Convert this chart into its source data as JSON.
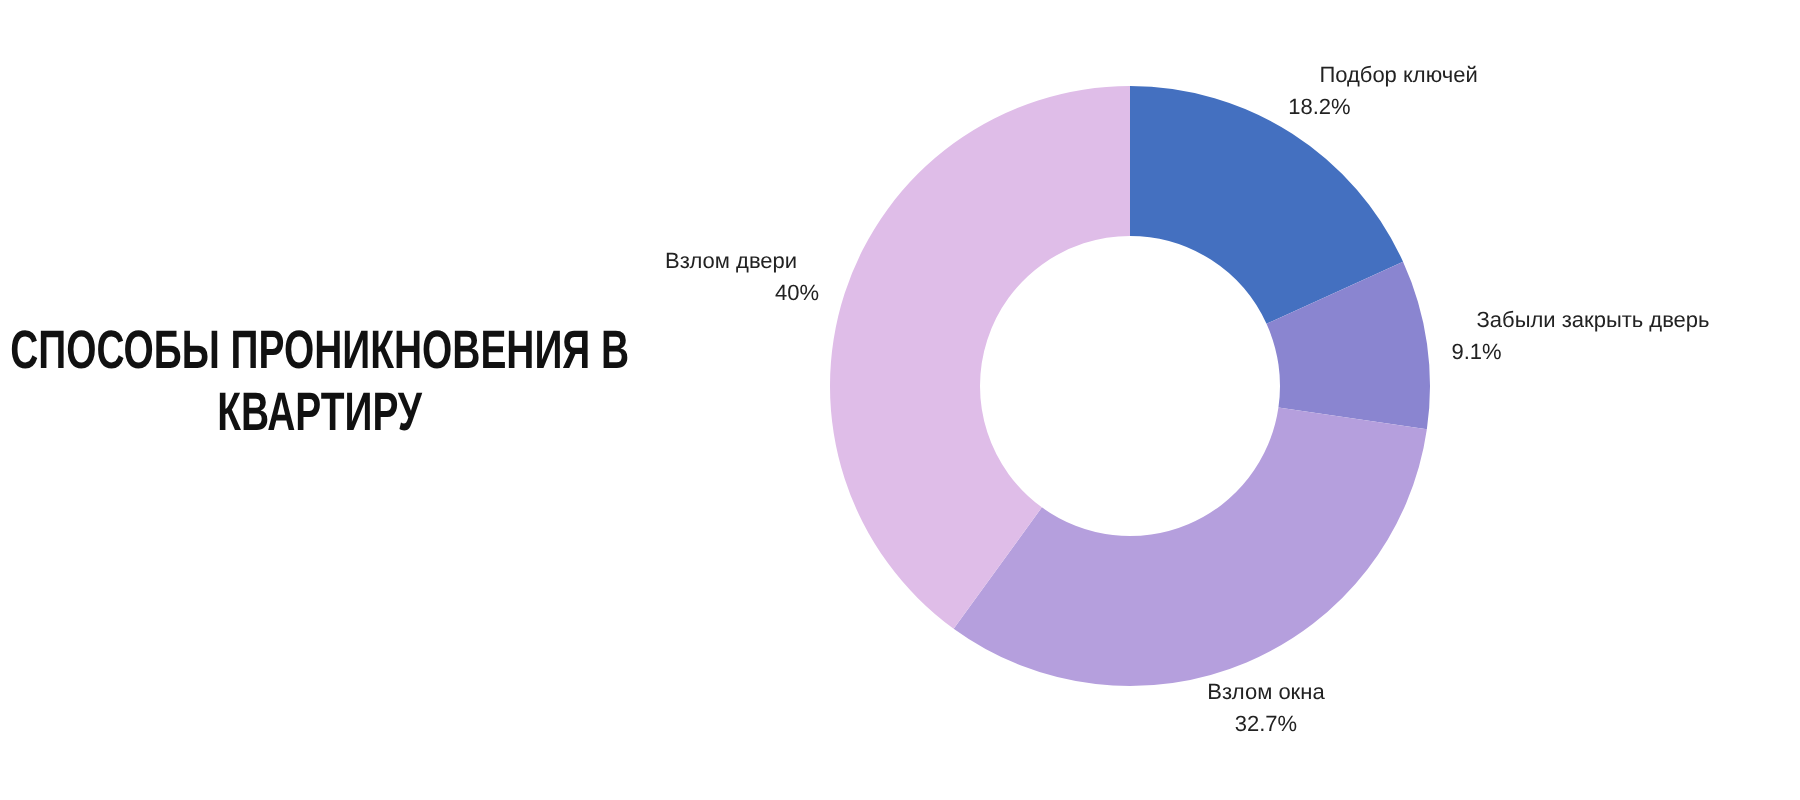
{
  "chart_data": {
    "type": "donut",
    "title": "СПОСОБЫ ПРОНИКНОВЕНИЯ В КВАРТИРУ",
    "categories": [
      "Подбор ключей",
      "Забыли закрыть дверь",
      "Взлом окна",
      "Взлом двери"
    ],
    "values": [
      18.2,
      9.1,
      32.7,
      40
    ],
    "value_labels": [
      "18.2%",
      "9.1%",
      "32.7%",
      "40%"
    ],
    "colors": [
      "#4470c0",
      "#8a85d0",
      "#b59fdd",
      "#dfbde8"
    ],
    "legend": false
  }
}
